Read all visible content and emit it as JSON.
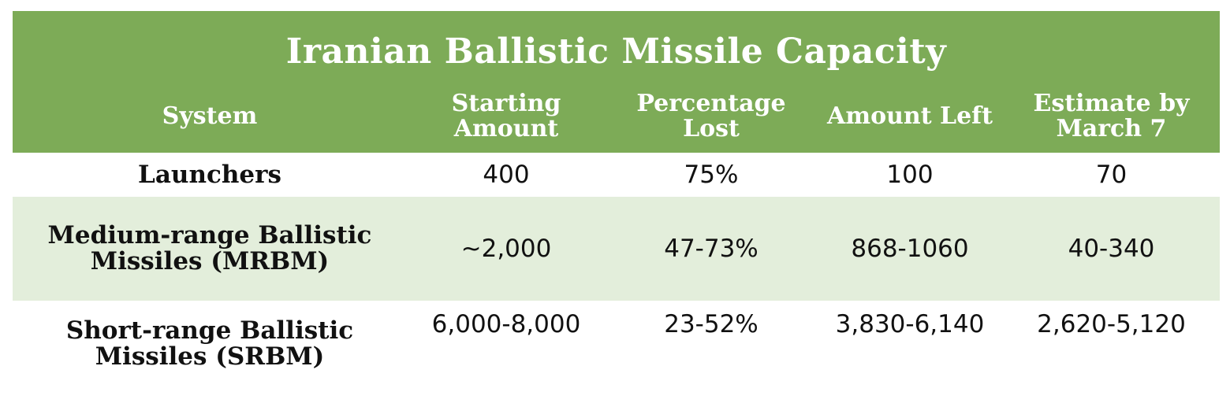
{
  "colors": {
    "header_bg": "#7dab57",
    "header_text": "#ffffff",
    "band_bg": "#e3eedb",
    "text": "#111111"
  },
  "chart_data": {
    "type": "table",
    "title": "Iranian Ballistic Missile Capacity",
    "columns": [
      "System",
      "Starting Amount",
      "Percentage Lost",
      "Amount Left",
      "Estimate by March 7"
    ],
    "rows": [
      [
        "Launchers",
        "400",
        "75%",
        "100",
        "70"
      ],
      [
        "Medium-range Ballistic Missiles (MRBM)",
        "~2,000",
        "47-73%",
        "868-1060",
        "40-340"
      ],
      [
        "Short-range Ballistic Missiles (SRBM)",
        "6,000-8,000",
        "23-52%",
        "3,830-6,140",
        "2,620-5,120"
      ]
    ]
  }
}
